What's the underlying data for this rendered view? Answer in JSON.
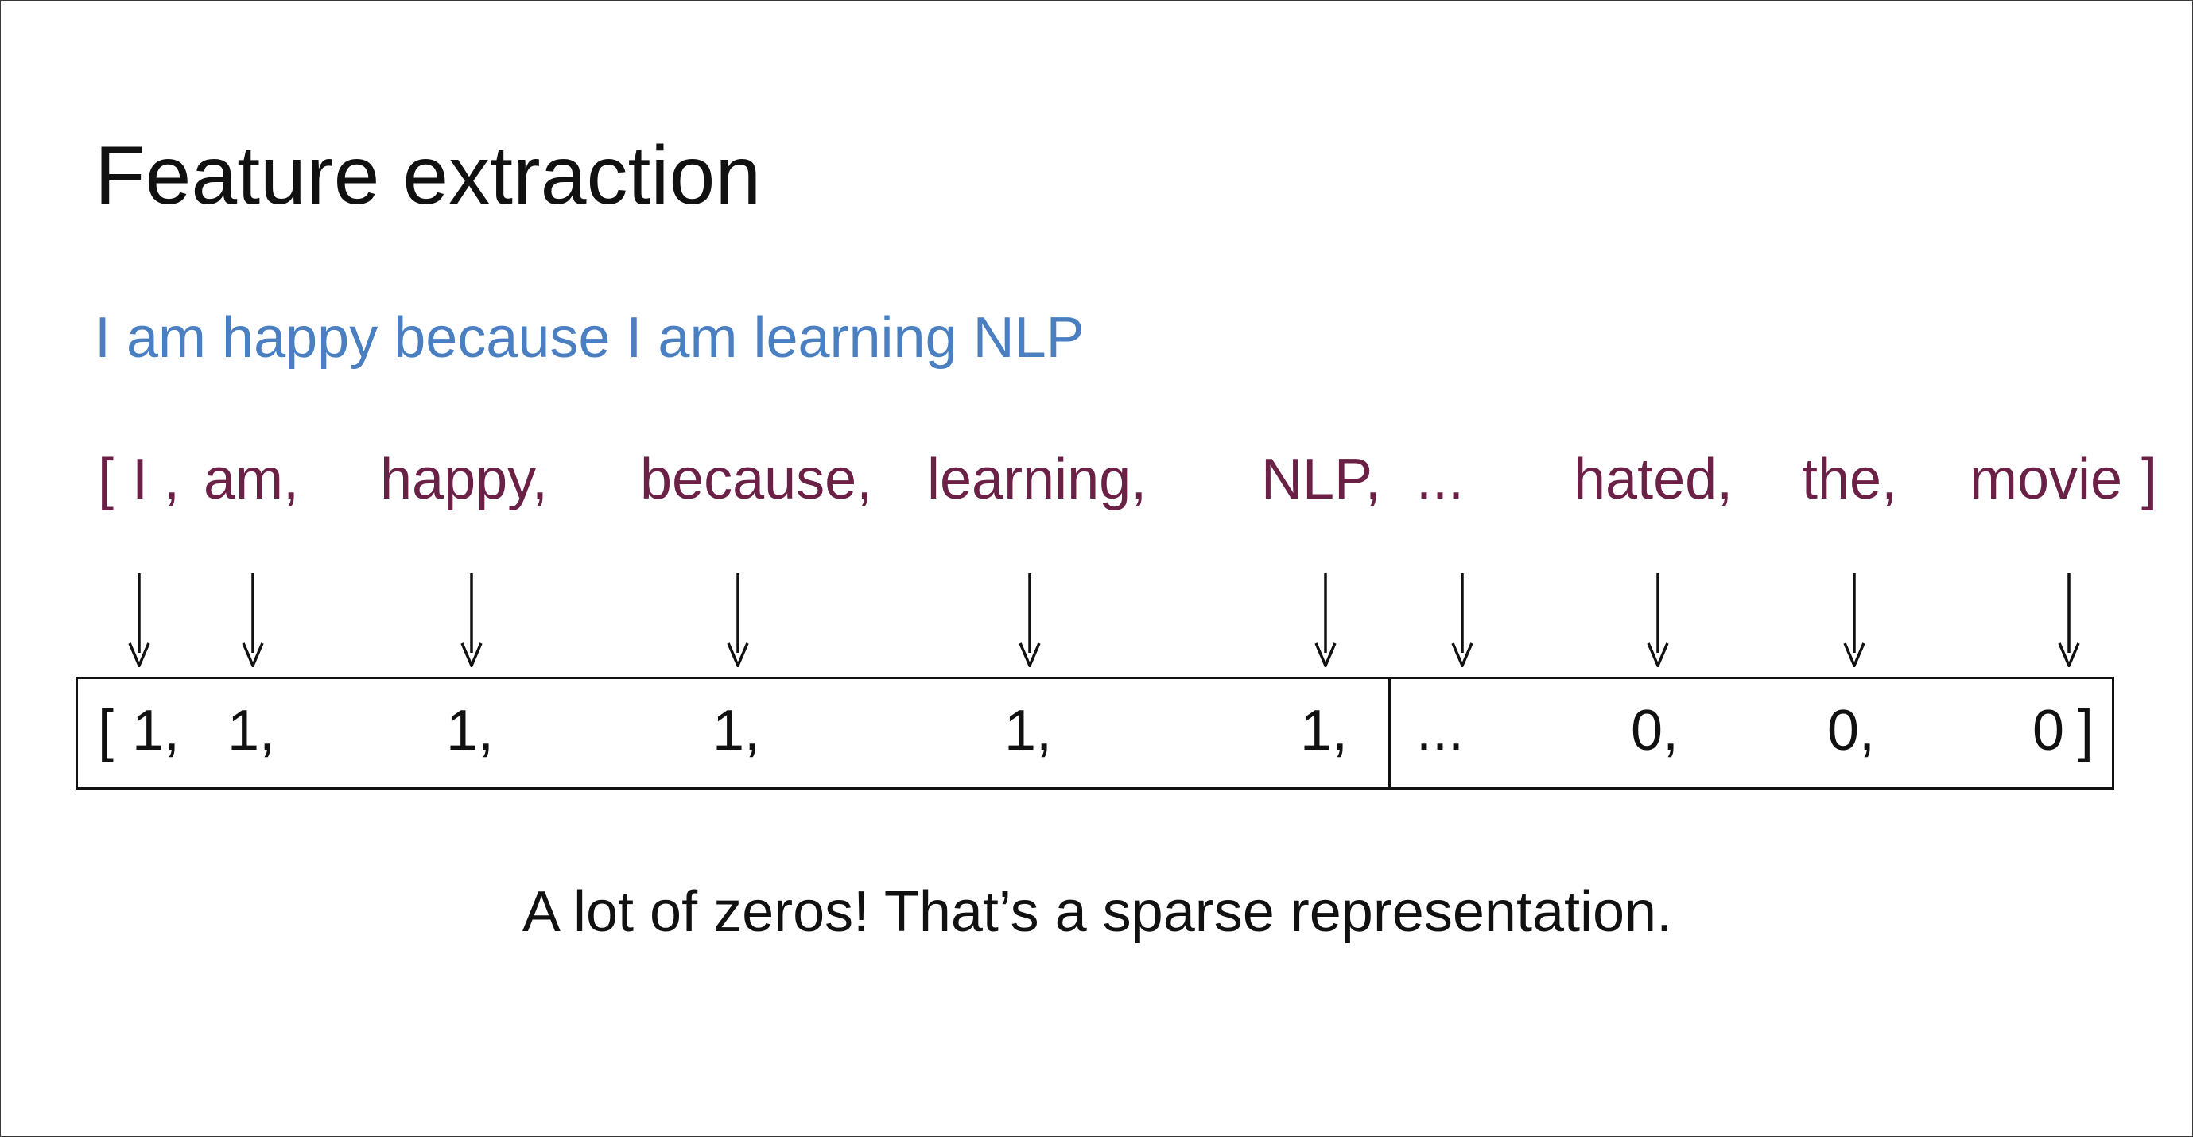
{
  "slide": {
    "title": "Feature extraction",
    "sentence": "I am happy because I am learning NLP",
    "vocab_open": "[",
    "vocab_close": "]",
    "vocabulary": [
      "I ,",
      "am,",
      "happy,",
      "because,",
      "learning,",
      "NLP,",
      "...",
      "hated,",
      "the,",
      "movie"
    ],
    "vector_open": "[",
    "vector_close": "]",
    "vector": [
      "1,",
      "1,",
      "1,",
      "1,",
      "1,",
      "1,",
      "...",
      "0,",
      "0,",
      "0"
    ],
    "caption": "A lot of zeros! That’s a sparse representation."
  },
  "colors": {
    "sentence": "#4a7fc1",
    "vocabulary": "#6b2146",
    "text": "#111111"
  }
}
